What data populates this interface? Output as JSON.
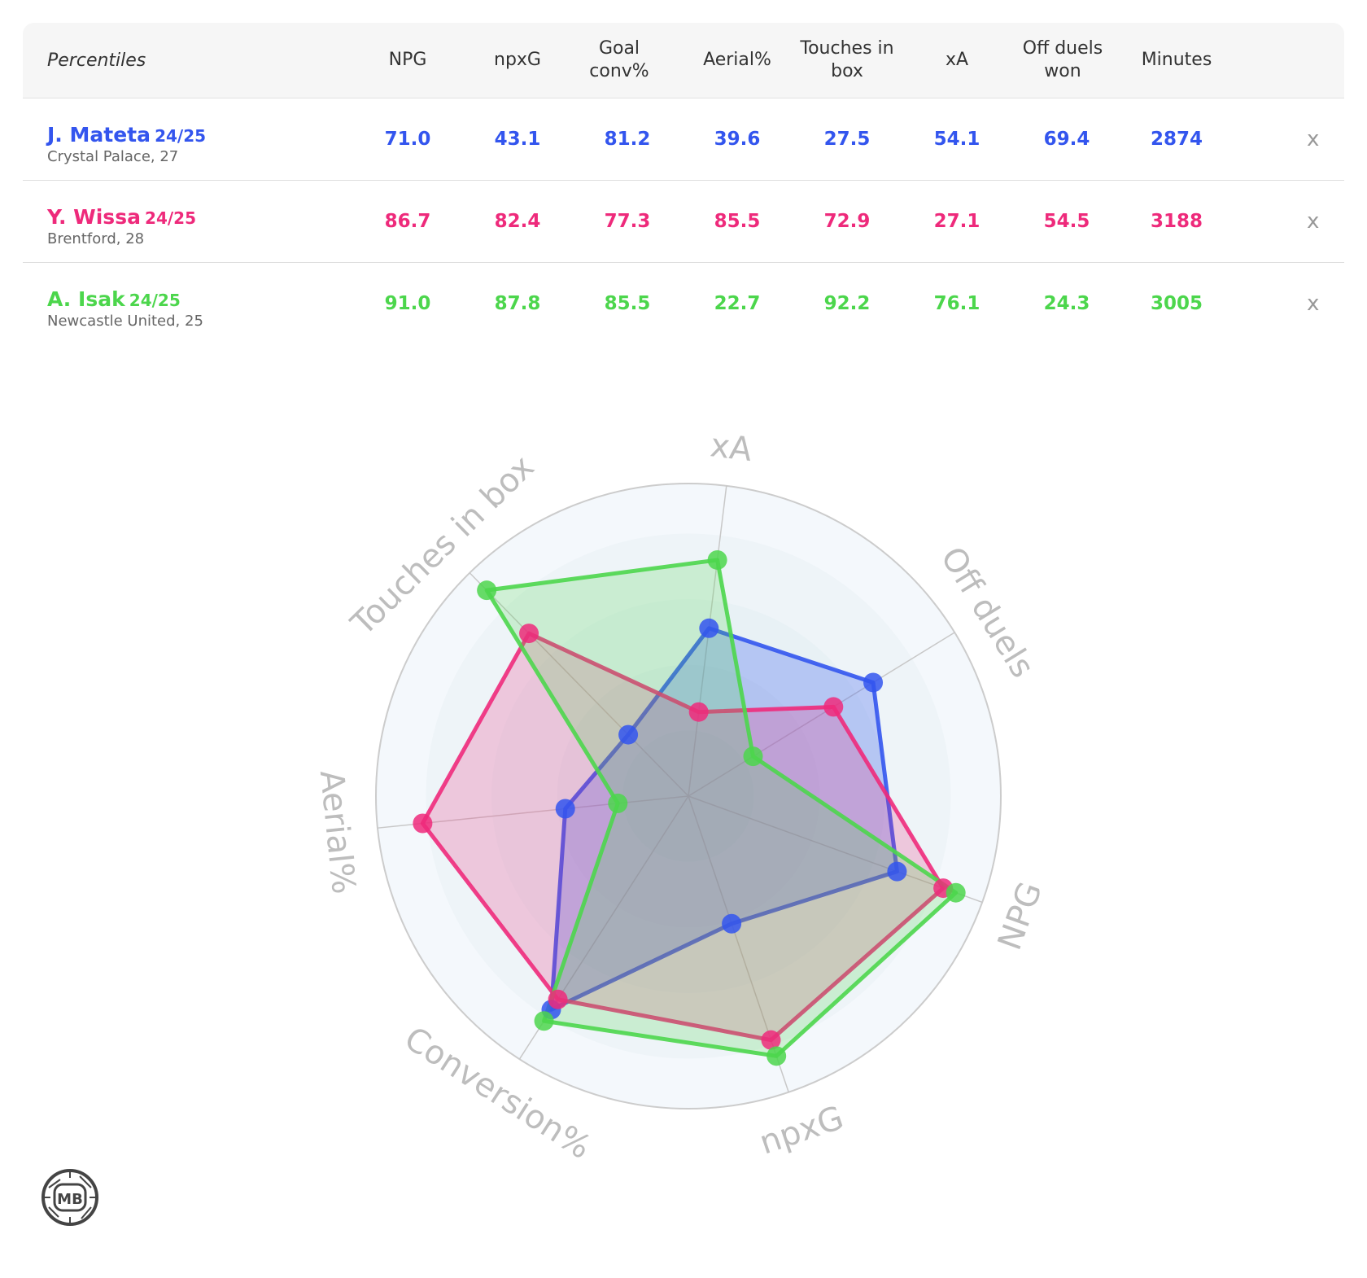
{
  "table": {
    "header_label": "Percentiles",
    "columns": [
      "NPG",
      "npxG",
      "Goal conv%",
      "Aerial%",
      "Touches in box",
      "xA",
      "Off duels won",
      "Minutes"
    ],
    "remove_label": "x",
    "players": [
      {
        "name": "J. Mateta",
        "season": "24/25",
        "club": "Crystal Palace, 27",
        "color": "#3355ee",
        "values": [
          "71.0",
          "43.1",
          "81.2",
          "39.6",
          "27.5",
          "54.1",
          "69.4",
          "2874"
        ]
      },
      {
        "name": "Y. Wissa",
        "season": "24/25",
        "club": "Brentford, 28",
        "color": "#ee2a7b",
        "values": [
          "86.7",
          "82.4",
          "77.3",
          "85.5",
          "72.9",
          "27.1",
          "54.5",
          "3188"
        ]
      },
      {
        "name": "A. Isak",
        "season": "24/25",
        "club": "Newcastle United, 25",
        "color": "#4cd64c",
        "values": [
          "91.0",
          "87.8",
          "85.5",
          "22.7",
          "92.2",
          "76.1",
          "24.3",
          "3005"
        ]
      }
    ]
  },
  "chart_data": {
    "type": "radar",
    "axes": [
      "xA",
      "Off duels",
      "NPG",
      "npxG",
      "Conversion%",
      "Aerial%",
      "Touches in box"
    ],
    "range": [
      0,
      100
    ],
    "series": [
      {
        "name": "J. Mateta",
        "color": "#3355ee",
        "values": [
          54.1,
          69.4,
          71.0,
          43.1,
          81.2,
          39.6,
          27.5
        ]
      },
      {
        "name": "Y. Wissa",
        "color": "#ee2a7b",
        "values": [
          27.1,
          54.5,
          86.7,
          82.4,
          77.3,
          85.5,
          72.9
        ]
      },
      {
        "name": "A. Isak",
        "color": "#4cd64c",
        "values": [
          76.1,
          24.3,
          91.0,
          87.8,
          85.5,
          22.7,
          92.2
        ]
      }
    ]
  },
  "logo": {
    "text": "MB"
  }
}
